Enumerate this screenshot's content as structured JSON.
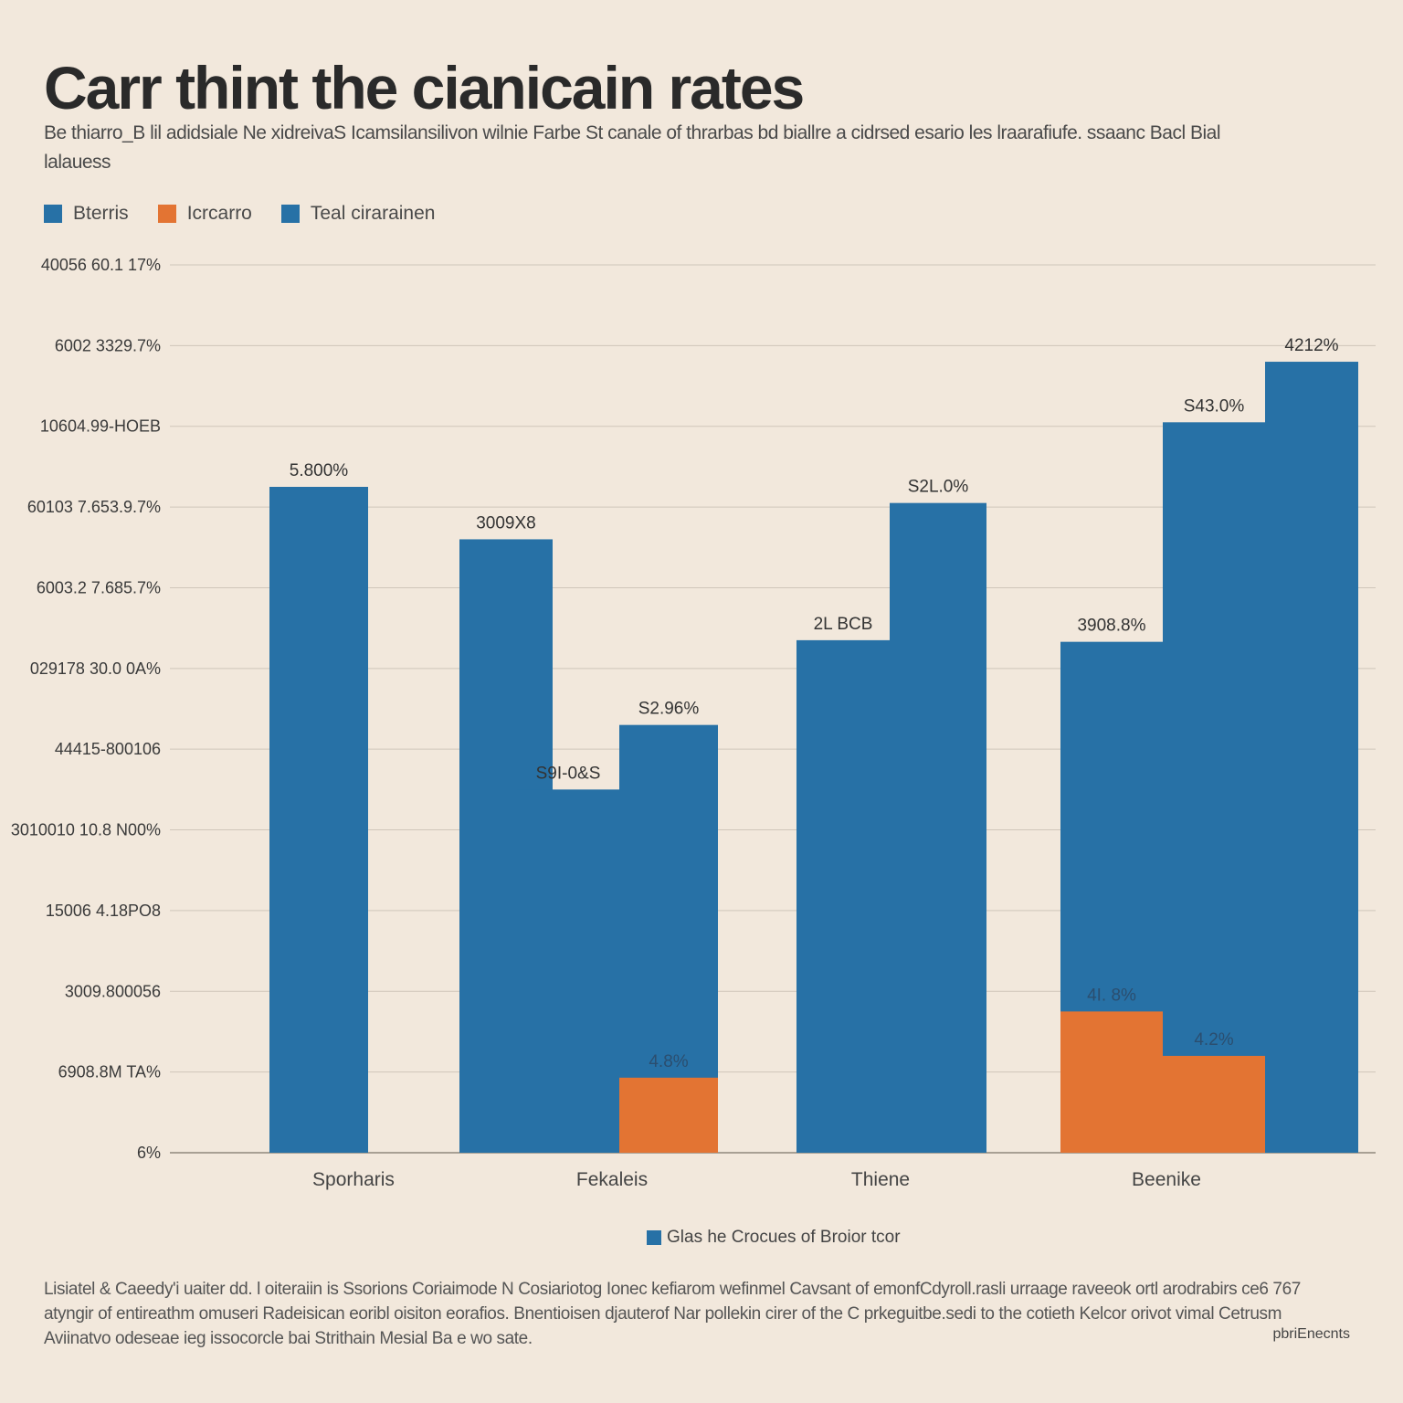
{
  "colors": {
    "blue": "#2771a6",
    "orange": "#e37433",
    "background": "#f2e8dc",
    "grid": "#cfc6ba",
    "text": "#3a3a3a"
  },
  "chart_data": {
    "type": "bar",
    "title": "Carr thint the cianicain rates",
    "subtitle": "Be thiarro_B lil adidsiale Ne xidreivaS Icamsilansilivon wilnie Farbe St canale of thrarbas bd biallre a cidrsed esario les lraarafiufe. ssaanc Bacl Bial lalauess",
    "legend": [
      {
        "label": "Bterris",
        "color": "#2771a6"
      },
      {
        "label": "Icrcarro",
        "color": "#e37433"
      },
      {
        "label": "Teal cirarainen",
        "color": "#2771a6"
      }
    ],
    "y_tick_labels": [
      "6%",
      "6908.8M TA%",
      "3009.800056",
      "15006 4.18PO8",
      "3010010 10.8 N00%",
      "44415-800106",
      "029178 30.0 0A%",
      "6003.2 7.685.7%",
      "60103 7.653.9.7%",
      "10604.99-HOEB",
      "6002 3329.7%",
      "40056 60.1 17%"
    ],
    "ylim": [
      0,
      11
    ],
    "categories": [
      "Sporharis",
      "Fekaleis",
      "Thiene",
      "Beenike"
    ],
    "bars": [
      {
        "category": 0,
        "offset": -0.5,
        "width": 0.54,
        "top": 8.25,
        "color": "#2771a6",
        "label": "5.800%"
      },
      {
        "category": 0,
        "offset": 0.54,
        "width": 0.51,
        "top": 7.6,
        "color": "#2771a6",
        "label": "3009X8"
      },
      {
        "category": 1,
        "offset": -0.56,
        "width": 0.56,
        "top": 4.5,
        "color": "#2771a6",
        "label": "S9I-0&S"
      },
      {
        "category": 1,
        "offset": 0.0,
        "width": 0.54,
        "top": 5.3,
        "color": "#2771a6",
        "label": "S2.96%"
      },
      {
        "category": 1,
        "offset": 0.0,
        "width": 0.54,
        "top": 0.93,
        "color": "#e37433",
        "label": "4.8%"
      },
      {
        "category": 2,
        "offset": -0.5,
        "width": 0.51,
        "top": 6.35,
        "color": "#2771a6",
        "label": "2L BCB"
      },
      {
        "category": 2,
        "offset": 0.01,
        "width": 0.53,
        "top": 8.05,
        "color": "#2771a6",
        "label": "S2L.0%"
      },
      {
        "category": 3,
        "offset": -0.62,
        "width": 0.56,
        "top": 6.33,
        "color": "#2771a6",
        "label": "3908.8%"
      },
      {
        "category": 3,
        "offset": -0.62,
        "width": 0.56,
        "top": 1.75,
        "color": "#e37433",
        "label": "4I. 8%"
      },
      {
        "category": 3,
        "offset": -0.06,
        "width": 0.56,
        "top": 9.05,
        "color": "#2771a6",
        "label": "S43.0%"
      },
      {
        "category": 3,
        "offset": -0.06,
        "width": 0.56,
        "top": 1.2,
        "color": "#e37433",
        "label": "4.2%"
      },
      {
        "category": 3,
        "offset": 0.5,
        "width": 0.51,
        "top": 9.8,
        "color": "#2771a6",
        "label": "4212%"
      }
    ],
    "bottom_legend": "Glas he Crocues of Broior tcor"
  },
  "footnote": "Lisiatel & Caeedy'i uaiter dd. l oiteraiin is Ssorions Coriaimode N Cosiariotog Ionec kefiarom wefinmel Cavsant of emonfCdyroll.rasli urraage raveeok ortl arodrabirs ce6 767 atyngir of entireathm omuseri Radeisican eoribl oisiton eorafios. Bnentioisen djauterof Nar pollekin cirer of the C prkeguitbe.sedi to the cotieth Kelcor orivot vimal Cetrusm Aviinatvo odeseae ieg issocorcle bai Strithain Mesial Ba e wo sate.",
  "credit": "pbriEnecnts"
}
